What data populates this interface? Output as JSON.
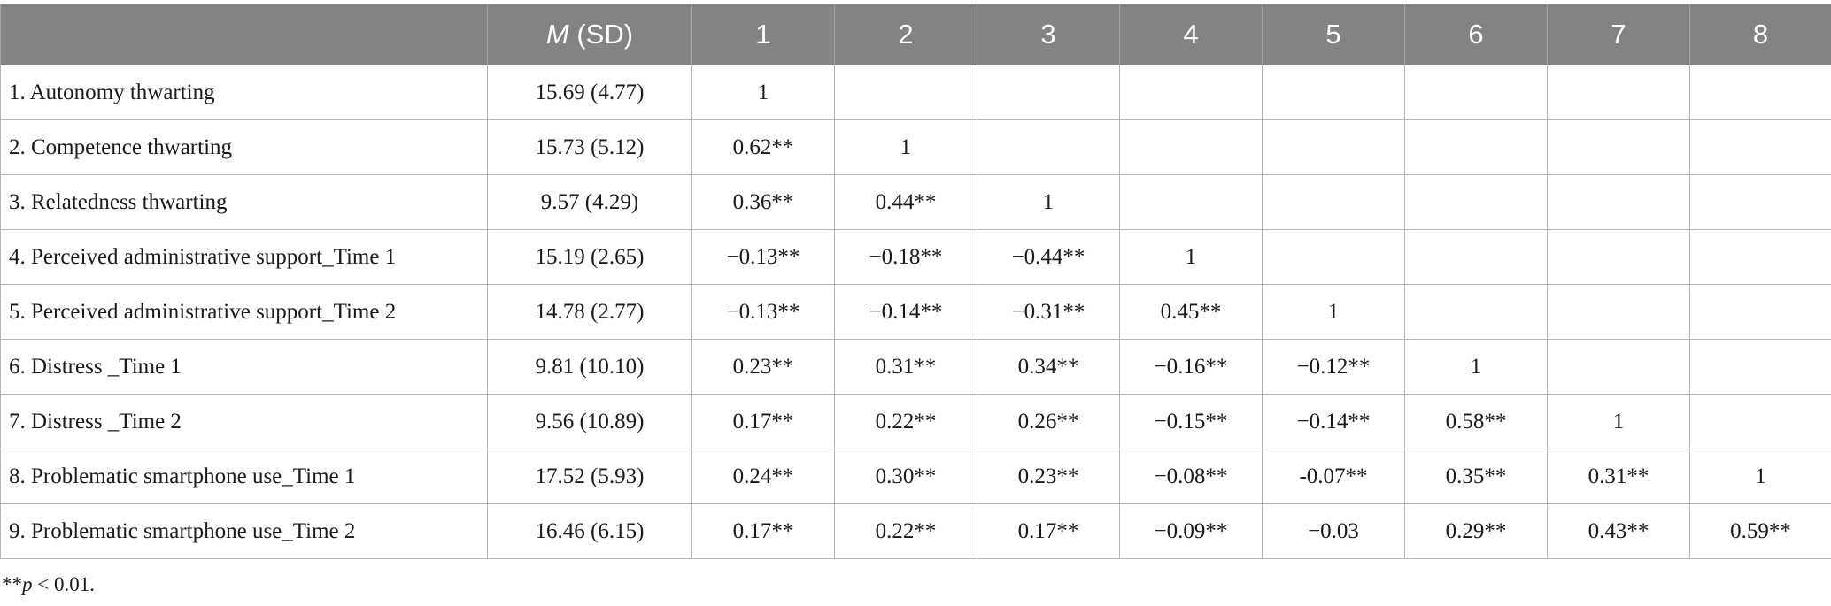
{
  "table": {
    "header": {
      "blank": "",
      "m_italic": "M",
      "sd": " (SD)",
      "columns": [
        "1",
        "2",
        "3",
        "4",
        "5",
        "6",
        "7",
        "8"
      ]
    },
    "rows": [
      {
        "label": "1. Autonomy thwarting",
        "msd": "15.69 (4.77)",
        "values": [
          "1",
          "",
          "",
          "",
          "",
          "",
          "",
          ""
        ]
      },
      {
        "label": "2. Competence thwarting",
        "msd": "15.73 (5.12)",
        "values": [
          "0.62**",
          "1",
          "",
          "",
          "",
          "",
          "",
          ""
        ]
      },
      {
        "label": "3. Relatedness thwarting",
        "msd": "9.57 (4.29)",
        "values": [
          "0.36**",
          "0.44**",
          "1",
          "",
          "",
          "",
          "",
          ""
        ]
      },
      {
        "label": "4. Perceived administrative support_Time 1",
        "msd": "15.19 (2.65)",
        "values": [
          "−0.13**",
          "−0.18**",
          "−0.44**",
          "1",
          "",
          "",
          "",
          ""
        ]
      },
      {
        "label": "5. Perceived administrative support_Time 2",
        "msd": "14.78 (2.77)",
        "values": [
          "−0.13**",
          "−0.14**",
          "−0.31**",
          "0.45**",
          "1",
          "",
          "",
          ""
        ]
      },
      {
        "label": "6. Distress _Time 1",
        "msd": "9.81 (10.10)",
        "values": [
          "0.23**",
          "0.31**",
          "0.34**",
          "−0.16**",
          "−0.12**",
          "1",
          "",
          ""
        ]
      },
      {
        "label": "7. Distress _Time 2",
        "msd": "9.56 (10.89)",
        "values": [
          "0.17**",
          "0.22**",
          "0.26**",
          "−0.15**",
          "−0.14**",
          "0.58**",
          "1",
          ""
        ]
      },
      {
        "label": "8. Problematic smartphone use_Time 1",
        "msd": "17.52 (5.93)",
        "values": [
          "0.24**",
          "0.30**",
          "0.23**",
          "−0.08**",
          "-0.07**",
          "0.35**",
          "0.31**",
          "1"
        ]
      },
      {
        "label": "9. Problematic smartphone use_Time 2",
        "msd": "16.46 (6.15)",
        "values": [
          "0.17**",
          "0.22**",
          "0.17**",
          "−0.09**",
          "−0.03",
          "0.29**",
          "0.43**",
          "0.59**"
        ]
      }
    ]
  },
  "footnote": {
    "stars": "**",
    "p": "p",
    "rest": " < 0.01."
  }
}
